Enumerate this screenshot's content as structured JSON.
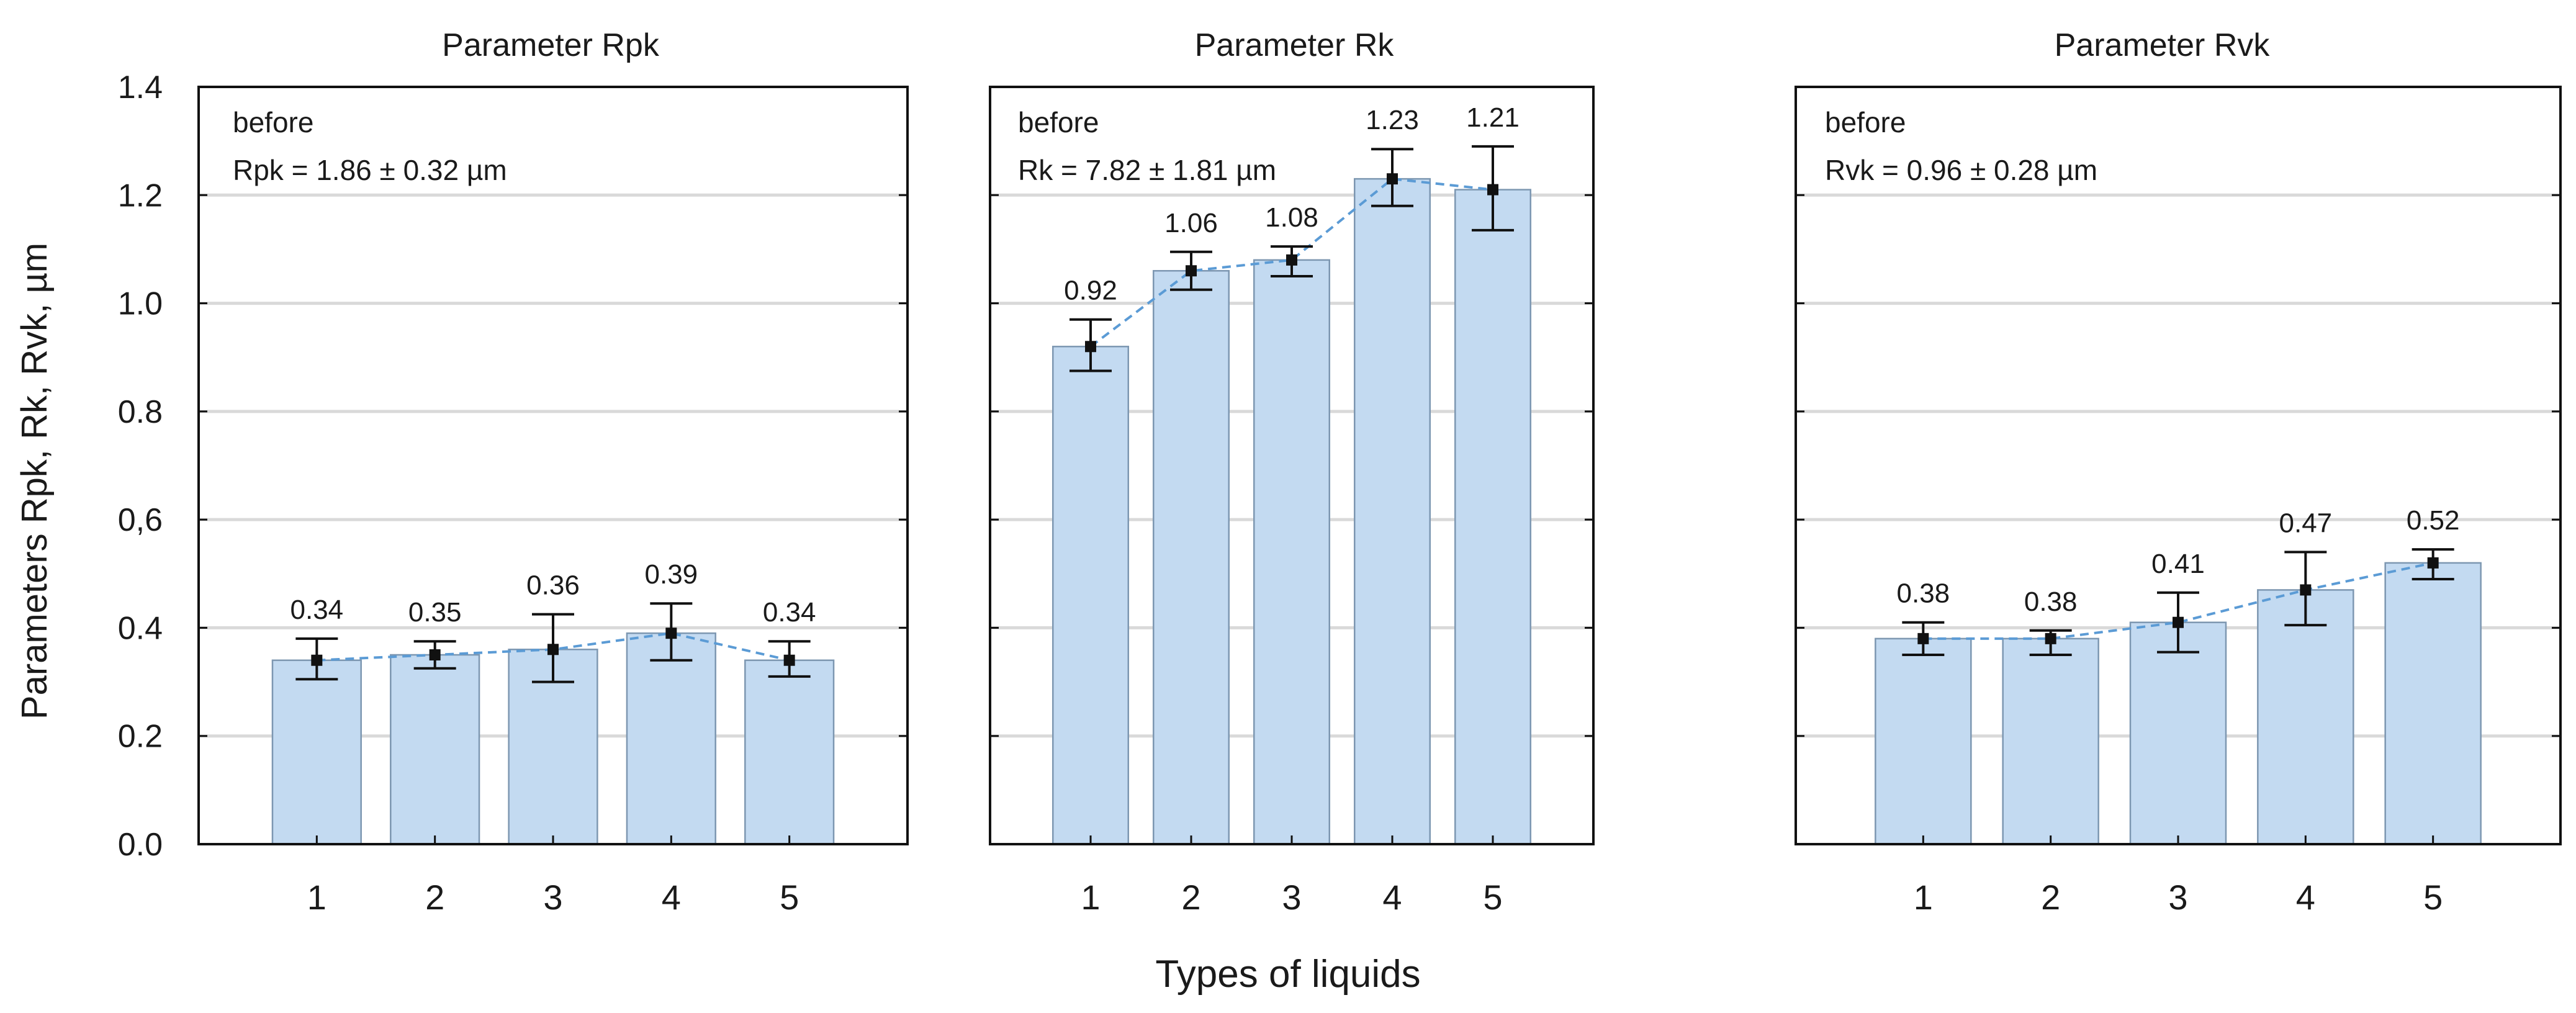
{
  "chart_data": {
    "type": "bar",
    "ylabel": "Parameters Rpk, Rk, Rvk, µm",
    "xlabel": "Types of liquids",
    "ylim": [
      0,
      1.4
    ],
    "ytick_labels": [
      "0.0",
      "0.2",
      "0.4",
      "0,6",
      "0.8",
      "1.0",
      "1.2",
      "1.4"
    ],
    "ytick_values": [
      0,
      0.2,
      0.4,
      0.6,
      0.8,
      1.0,
      1.2,
      1.4
    ],
    "colors": {
      "bar_fill": "#c3daf1",
      "bar_stroke": "#7d97b1",
      "trend_line": "#5b9bd5",
      "grid": "#d9d9d9",
      "marker": "#111111"
    },
    "panels": [
      {
        "title": "Parameter Rpk",
        "note_line1": "before",
        "note_line2": "Rpk = 1.86 ± 0.32 µm",
        "categories": [
          "1",
          "2",
          "3",
          "4",
          "5"
        ],
        "values": [
          0.34,
          0.35,
          0.36,
          0.39,
          0.34
        ],
        "value_labels": [
          "0.34",
          "0.35",
          "0.36",
          "0.39",
          "0.34"
        ],
        "error_low": [
          0.305,
          0.325,
          0.3,
          0.34,
          0.31
        ],
        "error_high": [
          0.38,
          0.375,
          0.425,
          0.445,
          0.375
        ]
      },
      {
        "title": "Parameter Rk",
        "note_line1": "before",
        "note_line2": "Rk = 7.82 ± 1.81 µm",
        "categories": [
          "1",
          "2",
          "3",
          "4",
          "5"
        ],
        "values": [
          0.92,
          1.06,
          1.08,
          1.23,
          1.21
        ],
        "value_labels": [
          "0.92",
          "1.06",
          "1.08",
          "1.23",
          "1.21"
        ],
        "error_low": [
          0.875,
          1.025,
          1.05,
          1.18,
          1.135
        ],
        "error_high": [
          0.97,
          1.095,
          1.105,
          1.285,
          1.29
        ]
      },
      {
        "title": "Parameter Rvk",
        "note_line1": "before",
        "note_line2": "Rvk = 0.96 ± 0.28 µm",
        "categories": [
          "1",
          "2",
          "3",
          "4",
          "5"
        ],
        "values": [
          0.38,
          0.38,
          0.41,
          0.47,
          0.52
        ],
        "value_labels": [
          "0.38",
          "0.38",
          "0.41",
          "0.47",
          "0.52"
        ],
        "error_low": [
          0.35,
          0.35,
          0.355,
          0.405,
          0.49
        ],
        "error_high": [
          0.41,
          0.395,
          0.465,
          0.54,
          0.545
        ]
      }
    ]
  }
}
